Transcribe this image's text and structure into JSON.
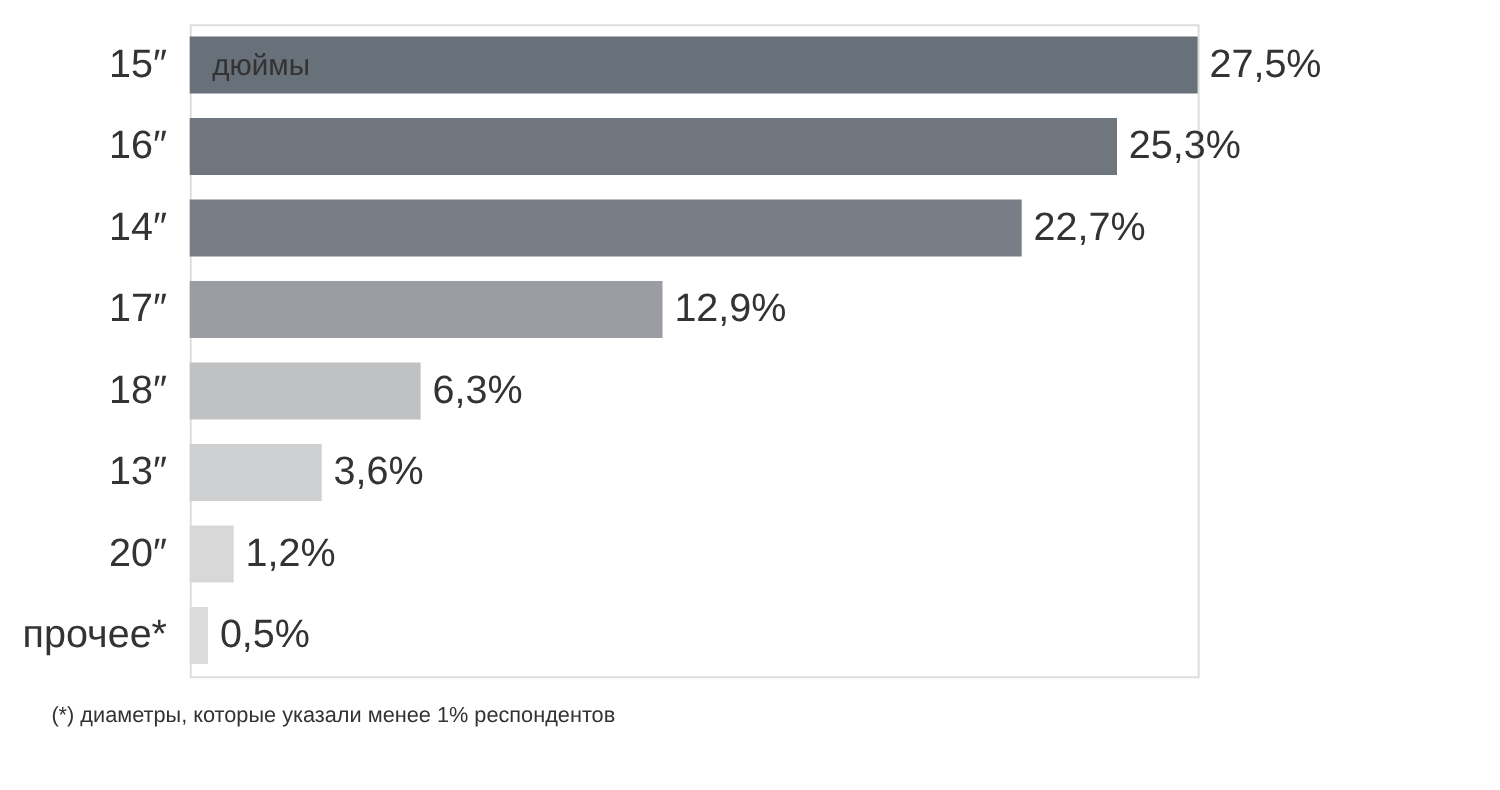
{
  "chart_data": {
    "type": "bar",
    "orientation": "horizontal",
    "categories": [
      "15″",
      "16″",
      "14″",
      "17″",
      "18″",
      "13″",
      "20″",
      "прочее*"
    ],
    "values": [
      27.5,
      25.3,
      22.7,
      12.9,
      6.3,
      3.6,
      1.2,
      0.5
    ],
    "value_labels": [
      "27,5%",
      "25,3%",
      "22,7%",
      "12,9%",
      "6,3%",
      "3,6%",
      "1,2%",
      "0,5%"
    ],
    "colors": [
      "#687079",
      "#70767e",
      "#787e86",
      "#9a9ea3",
      "#bfc1c3",
      "#cecfd0",
      "#d8d8d8",
      "#dcdcdc"
    ],
    "annotations": [
      {
        "text": "дюймы",
        "x": 0.4,
        "y": "15″"
      },
      "(*) диаметры, которые указали менее 1% респондентов"
    ],
    "grid": false
  }
}
